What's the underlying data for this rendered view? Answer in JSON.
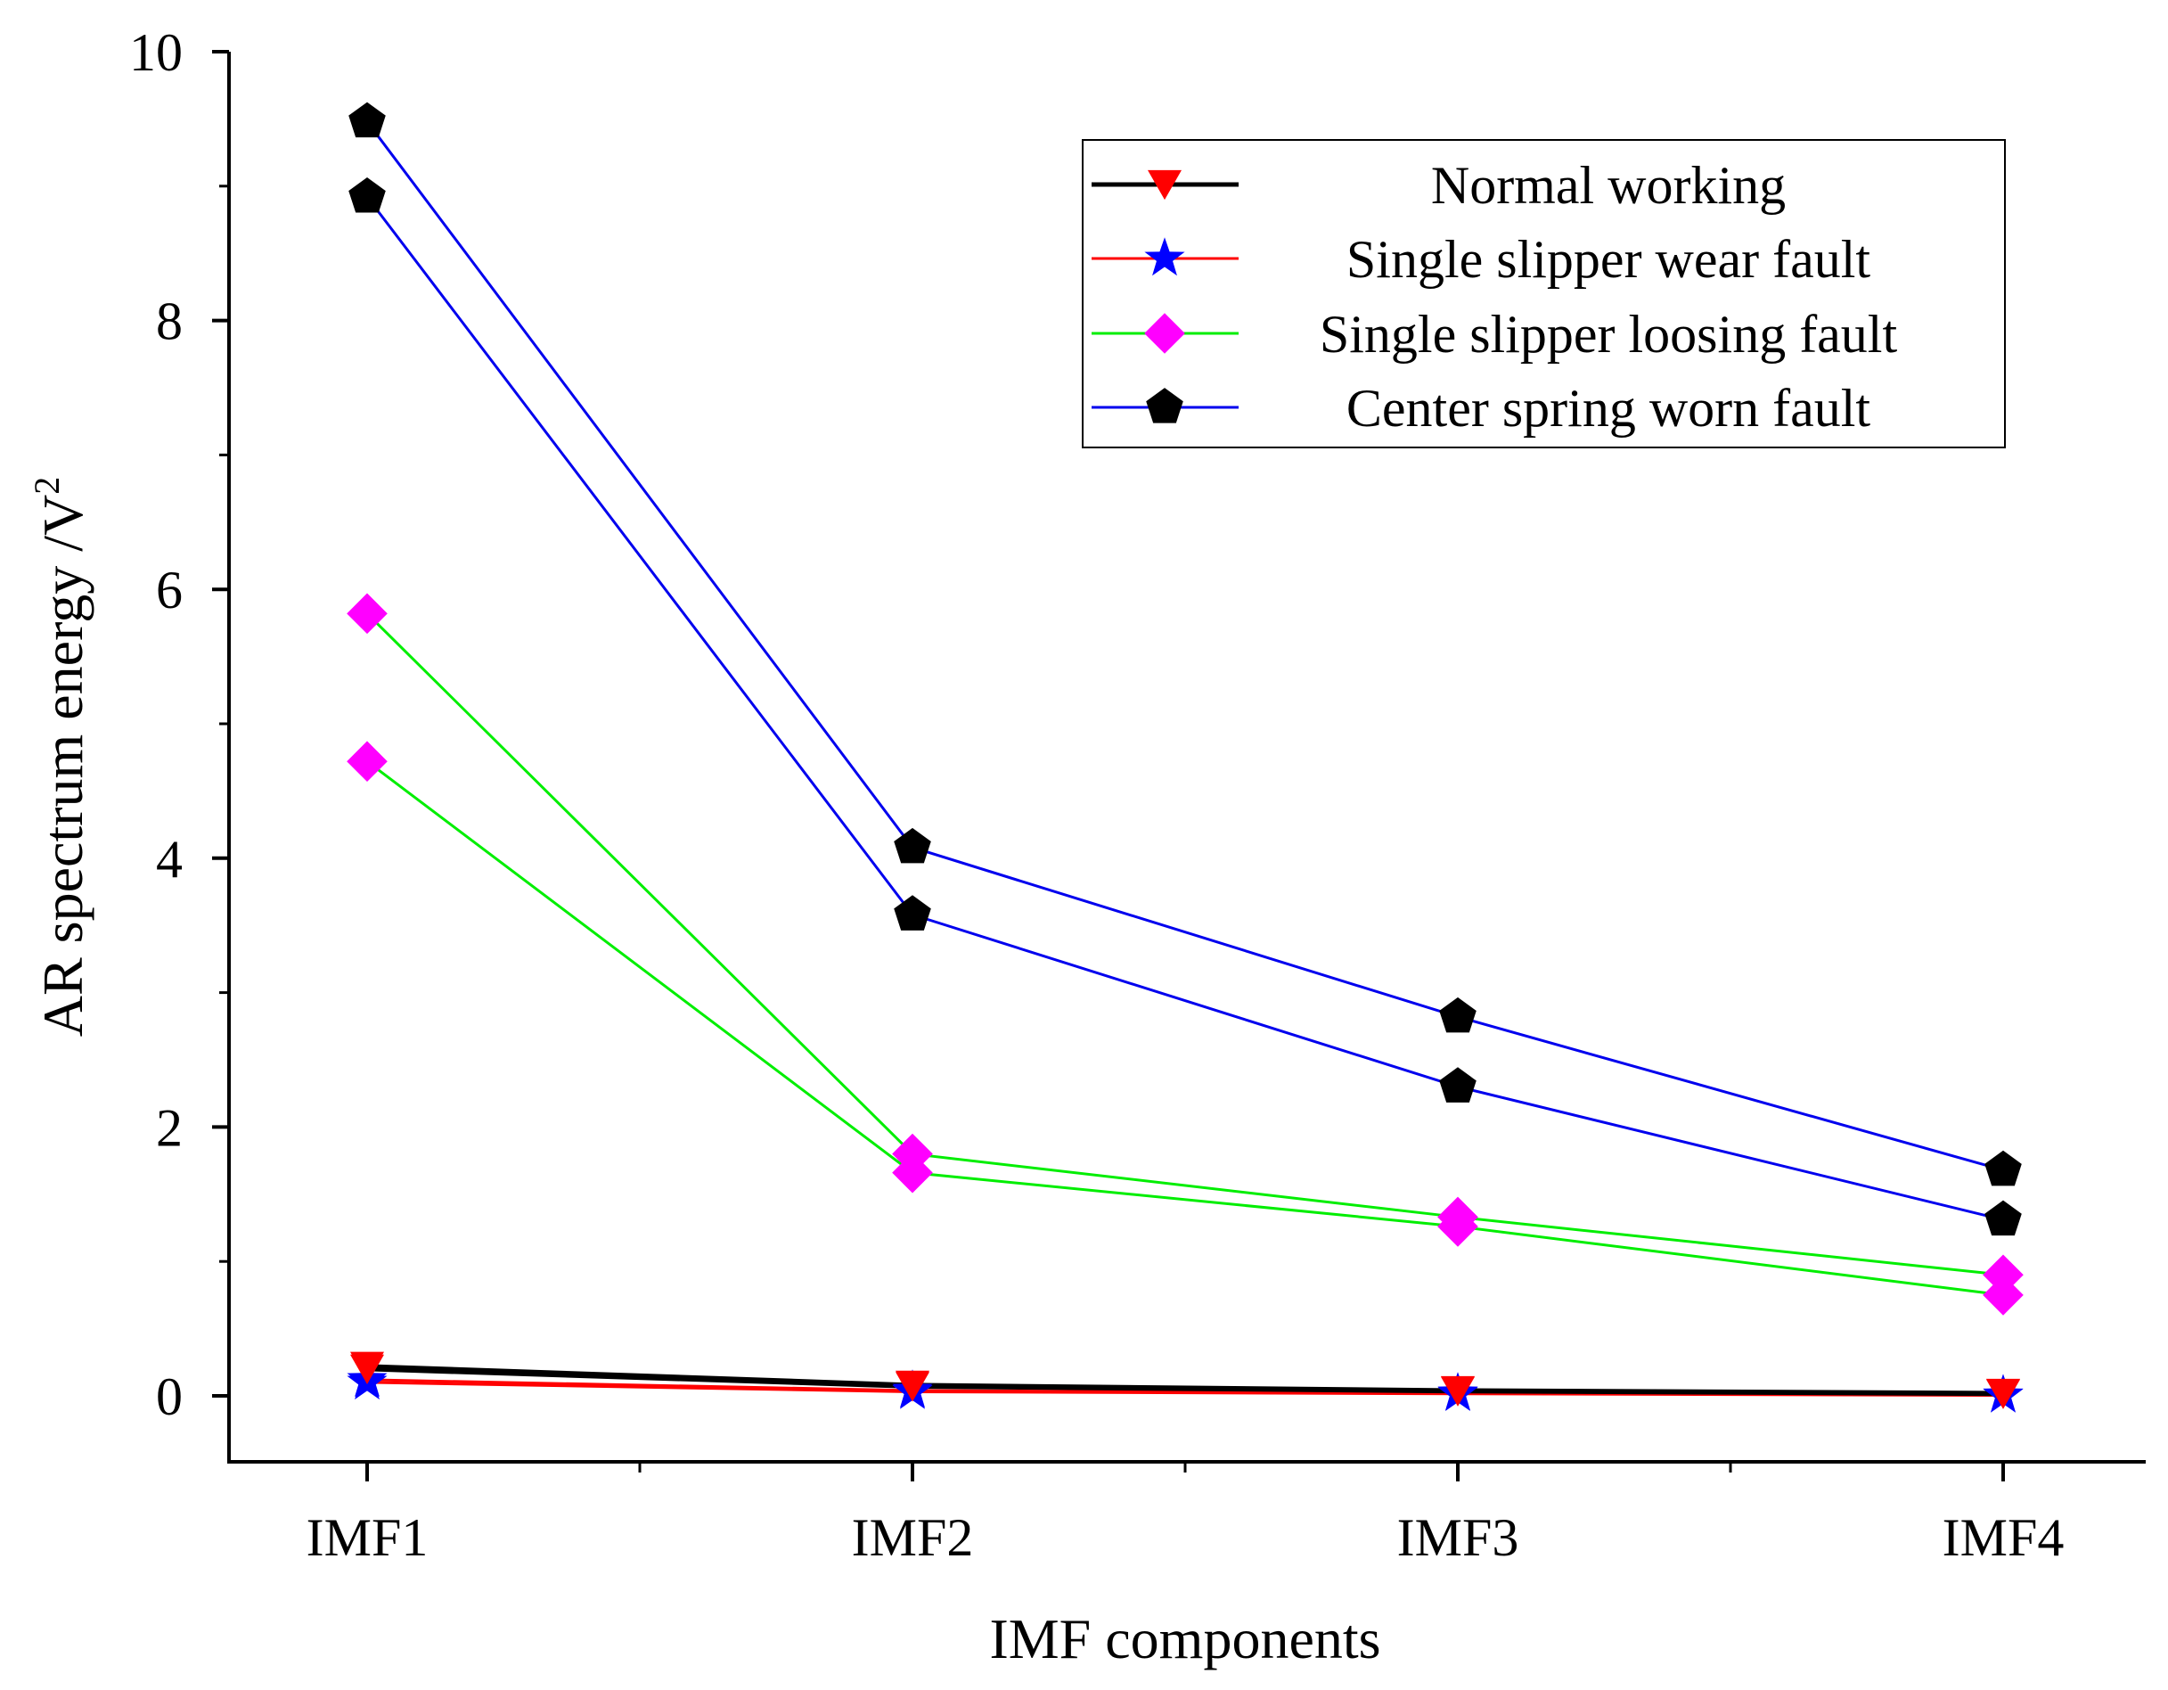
{
  "chart_data": {
    "type": "line",
    "title": "",
    "xlabel": "IMF components",
    "ylabel": "AR spectrum energy /V",
    "ylabel_superscript": "2",
    "categories": [
      "IMF1",
      "IMF2",
      "IMF3",
      "IMF4"
    ],
    "ylim": [
      -0.5,
      10
    ],
    "yticks": [
      0,
      2,
      4,
      6,
      8,
      10
    ],
    "ytick_labels": [
      "0",
      "2",
      "4",
      "6",
      "8",
      "10"
    ],
    "legend_position": "top-right",
    "series": [
      {
        "name": "Normal working",
        "line_color": "#000000",
        "marker": "triangle-down",
        "marker_color": "#ff0000",
        "runs": [
          [
            0.22,
            0.08,
            0.04,
            0.02
          ],
          [
            0.2,
            0.07,
            0.035,
            0.015
          ]
        ]
      },
      {
        "name": "Single slipper wear fault",
        "line_color": "#ff0000",
        "marker": "star",
        "marker_color": "#0000ff",
        "runs": [
          [
            0.12,
            0.04,
            0.02,
            0.005
          ],
          [
            0.1,
            0.03,
            0.015,
            0.003
          ]
        ]
      },
      {
        "name": "Single slipper loosing fault",
        "line_color": "#00ee00",
        "marker": "diamond",
        "marker_color": "#ff00ff",
        "runs": [
          [
            5.82,
            1.8,
            1.33,
            0.9
          ],
          [
            4.72,
            1.66,
            1.26,
            0.75
          ]
        ]
      },
      {
        "name": "Center spring worn fault",
        "line_color": "#0000ee",
        "marker": "pentagon",
        "marker_color": "#000000",
        "runs": [
          [
            9.48,
            4.08,
            2.82,
            1.68
          ],
          [
            8.92,
            3.58,
            2.3,
            1.31
          ]
        ]
      }
    ]
  }
}
